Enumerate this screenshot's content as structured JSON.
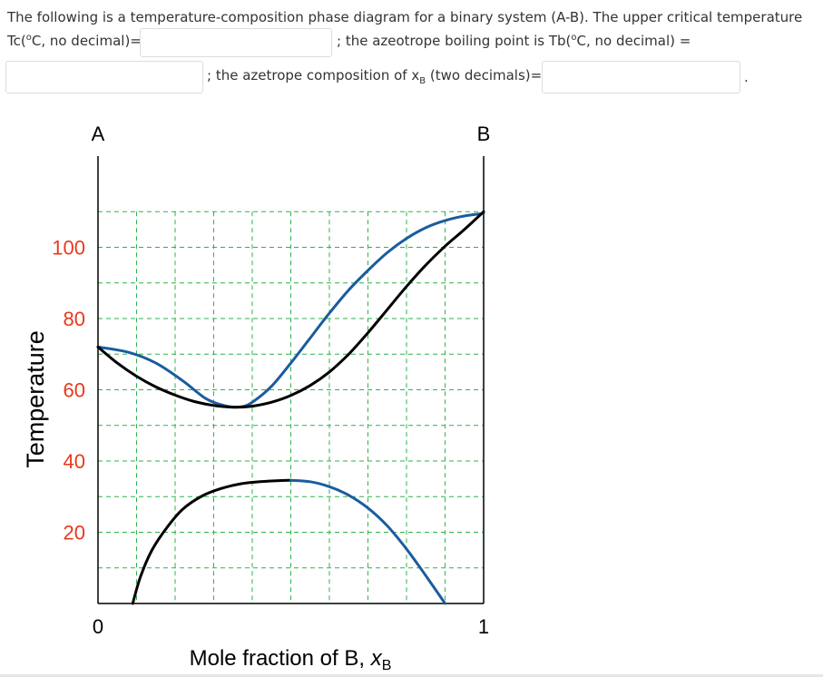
{
  "question": {
    "line1": "The following is a temperature-composition phase diagram for a binary system (A-B). The upper critical temperature",
    "tc_prefix": "Tc(",
    "degree": "o",
    "tc_suffix": "C, no decimal)=",
    "tb_prefix": "; the azeotrope boiling point is Tb(",
    "tb_suffix": "C, no decimal) =",
    "xb_prefix": "; the azetrope composition of x",
    "xb_sub": "B",
    "xb_suffix": " (two decimals)=",
    "end_period": ".",
    "answers": {
      "tc": "",
      "tb": "",
      "xb_comp": ""
    }
  },
  "chart_data": {
    "type": "line",
    "ylabel": "Temperature",
    "xlabel_text": "Mole fraction of B, ",
    "xlabel_var": "x",
    "xlabel_sub": "B",
    "label_left": "A",
    "label_right": "B",
    "x_ticks": [
      {
        "value": 0,
        "label": "0"
      },
      {
        "value": 1,
        "label": "1"
      }
    ],
    "y_ticks": [
      {
        "value": 20,
        "label": "20"
      },
      {
        "value": 40,
        "label": "40"
      },
      {
        "value": 60,
        "label": "60"
      },
      {
        "value": 80,
        "label": "80"
      },
      {
        "value": 100,
        "label": "100"
      }
    ],
    "xlim": [
      0,
      1
    ],
    "ylim": [
      0,
      110
    ],
    "grid": true,
    "y_tick_color": "#e8391c",
    "series": [
      {
        "id": "vapor_curve",
        "color": "#1a5c9e",
        "x": [
          0,
          0.08,
          0.15,
          0.22,
          0.28,
          0.33,
          0.37,
          0.4,
          0.45,
          0.5,
          0.55,
          0.6,
          0.65,
          0.7,
          0.75,
          0.8,
          0.85,
          0.9,
          0.95,
          1
        ],
        "y": [
          72,
          70.5,
          67.5,
          62.5,
          57.5,
          55.5,
          55.2,
          56.5,
          61,
          67.5,
          74.5,
          81.5,
          88,
          93.5,
          98.5,
          102.5,
          105.5,
          107.5,
          108.8,
          109.5
        ]
      },
      {
        "id": "liquid_curve",
        "color": "#000000",
        "x": [
          0,
          0.05,
          0.1,
          0.15,
          0.2,
          0.25,
          0.3,
          0.35,
          0.4,
          0.45,
          0.5,
          0.55,
          0.6,
          0.65,
          0.7,
          0.75,
          0.8,
          0.85,
          0.9,
          0.95,
          1
        ],
        "y": [
          72,
          67.5,
          63.8,
          60.8,
          58.5,
          56.7,
          55.6,
          55.1,
          55.4,
          56.5,
          58.4,
          61.2,
          65,
          70,
          76,
          82.5,
          89,
          95,
          100.3,
          105,
          110
        ]
      },
      {
        "id": "lower_left_curve",
        "color": "#000000",
        "x": [
          0.09,
          0.11,
          0.14,
          0.18,
          0.22,
          0.27,
          0.32,
          0.37,
          0.42,
          0.47,
          0.5
        ],
        "y": [
          0,
          7.5,
          15,
          21.5,
          26.5,
          30.2,
          32.3,
          33.6,
          34.2,
          34.5,
          34.6
        ]
      },
      {
        "id": "lower_right_curve",
        "color": "#1a5c9e",
        "x": [
          0.5,
          0.55,
          0.6,
          0.65,
          0.7,
          0.75,
          0.8,
          0.85,
          0.9
        ],
        "y": [
          34.6,
          34.2,
          32.8,
          30.4,
          26.8,
          21.8,
          15.3,
          7.8,
          0
        ]
      }
    ]
  }
}
